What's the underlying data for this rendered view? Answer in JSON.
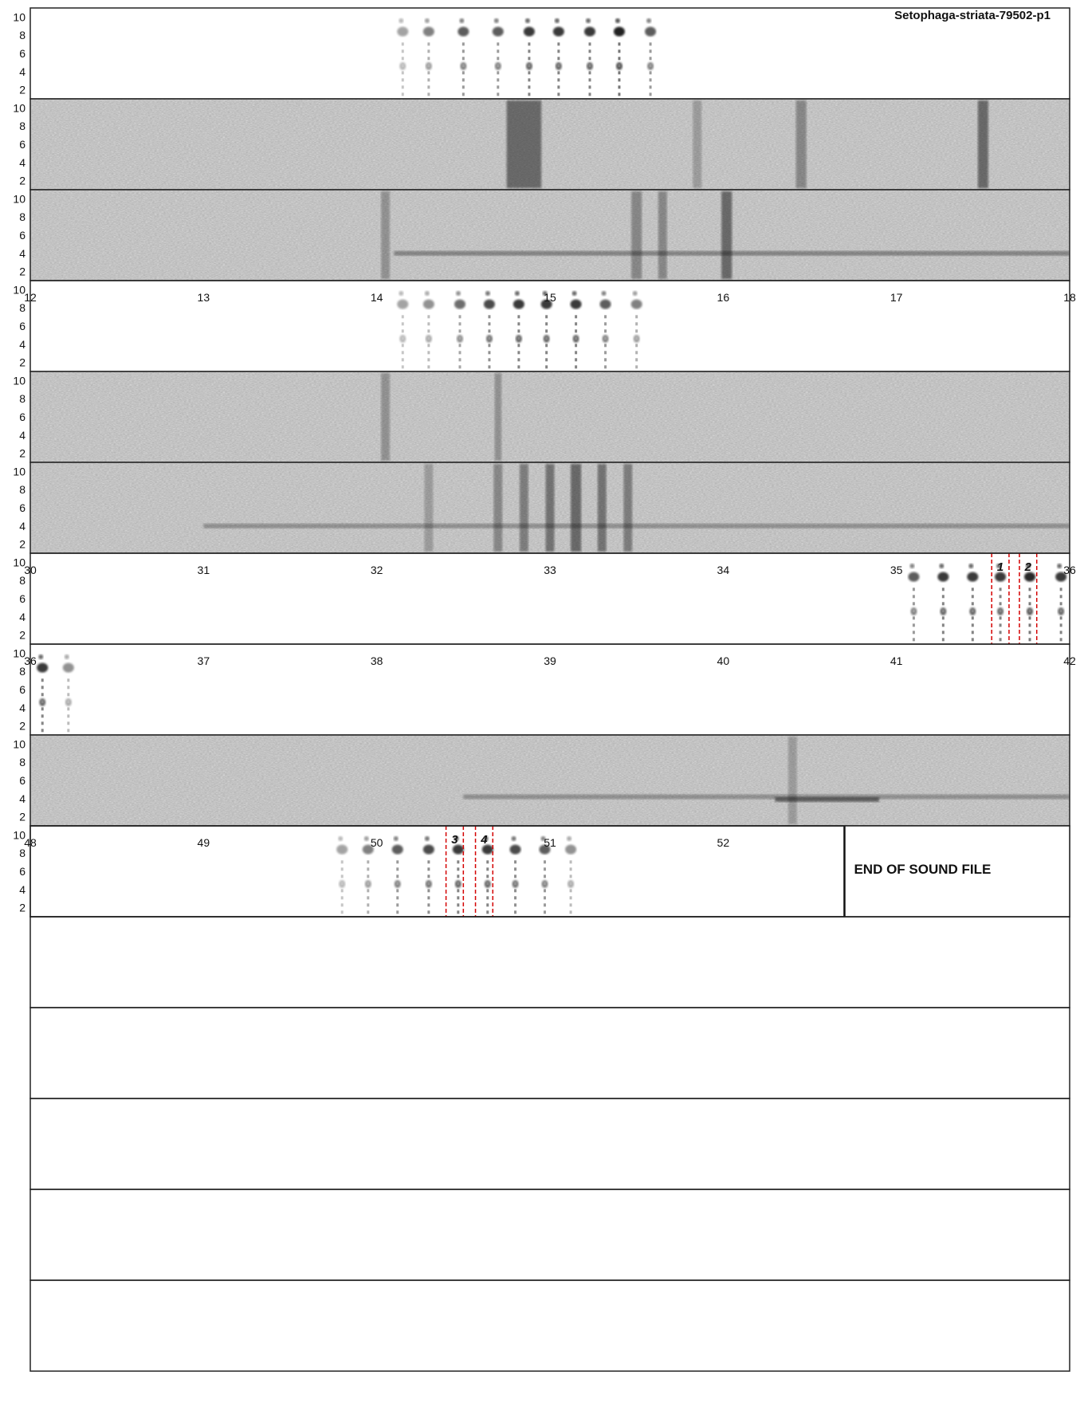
{
  "page_title": "Setophaga-striata-79502-p1",
  "end_label": "END OF SOUND FILE",
  "chart_data": {
    "type": "spectrogram",
    "title": "Setophaga-striata-79502-p1",
    "xlabel": "",
    "ylabel": "",
    "y_ticks": [
      2,
      4,
      6,
      8,
      10
    ],
    "seconds_per_row": 6,
    "rows": [
      {
        "x_start": 0,
        "x_end": 6,
        "x_ticks": [],
        "background": "clean",
        "calls": [
          {
            "t": 2.15,
            "strength": 0.2
          },
          {
            "t": 2.3,
            "strength": 0.4
          },
          {
            "t": 2.5,
            "strength": 0.6
          },
          {
            "t": 2.7,
            "strength": 0.6
          },
          {
            "t": 2.88,
            "strength": 0.8
          },
          {
            "t": 3.05,
            "strength": 0.8
          },
          {
            "t": 3.23,
            "strength": 0.8
          },
          {
            "t": 3.4,
            "strength": 0.95
          },
          {
            "t": 3.58,
            "strength": 0.6
          }
        ]
      },
      {
        "x_start": 6,
        "x_end": 12,
        "x_ticks": [],
        "background": "noise",
        "streaks": [
          {
            "t": 8.85,
            "strength": 0.9,
            "width": 0.2
          },
          {
            "t": 9.85,
            "strength": 0.4,
            "width": 0.05
          },
          {
            "t": 10.45,
            "strength": 0.6,
            "width": 0.06
          },
          {
            "t": 11.5,
            "strength": 0.9,
            "width": 0.06
          }
        ],
        "bands": []
      },
      {
        "x_start": 12,
        "x_end": 18,
        "x_ticks": [],
        "background": "noise",
        "streaks": [
          {
            "t": 14.05,
            "strength": 0.5,
            "width": 0.05
          },
          {
            "t": 15.5,
            "strength": 0.6,
            "width": 0.06
          },
          {
            "t": 15.65,
            "strength": 0.6,
            "width": 0.05
          },
          {
            "t": 16.02,
            "strength": 0.9,
            "width": 0.06
          }
        ],
        "bands": [
          {
            "t0": 14.1,
            "t1": 18.0,
            "f": 4.0,
            "strength": 0.55
          }
        ]
      },
      {
        "x_start": 12,
        "x_end": 18,
        "x_ticks": [
          12,
          13,
          14,
          15,
          16,
          17,
          18
        ],
        "background": "clean",
        "calls": [
          {
            "t": 14.15,
            "strength": 0.2
          },
          {
            "t": 14.3,
            "strength": 0.3
          },
          {
            "t": 14.48,
            "strength": 0.5
          },
          {
            "t": 14.65,
            "strength": 0.7
          },
          {
            "t": 14.82,
            "strength": 0.8
          },
          {
            "t": 14.98,
            "strength": 0.8
          },
          {
            "t": 15.15,
            "strength": 0.8
          },
          {
            "t": 15.32,
            "strength": 0.6
          },
          {
            "t": 15.5,
            "strength": 0.4
          }
        ]
      },
      {
        "x_start": 18,
        "x_end": 24,
        "x_ticks": [],
        "background": "noise",
        "streaks": [
          {
            "t": 20.05,
            "strength": 0.5,
            "width": 0.05
          },
          {
            "t": 20.7,
            "strength": 0.5,
            "width": 0.04
          }
        ],
        "bands": []
      },
      {
        "x_start": 24,
        "x_end": 30,
        "x_ticks": [],
        "background": "noise",
        "streaks": [
          {
            "t": 26.3,
            "strength": 0.4,
            "width": 0.05
          },
          {
            "t": 26.7,
            "strength": 0.6,
            "width": 0.05
          },
          {
            "t": 26.85,
            "strength": 0.7,
            "width": 0.05
          },
          {
            "t": 27.0,
            "strength": 0.8,
            "width": 0.05
          },
          {
            "t": 27.15,
            "strength": 0.9,
            "width": 0.06
          },
          {
            "t": 27.3,
            "strength": 0.8,
            "width": 0.05
          },
          {
            "t": 27.45,
            "strength": 0.7,
            "width": 0.05
          }
        ],
        "bands": [
          {
            "t0": 25.0,
            "t1": 30.0,
            "f": 4.0,
            "strength": 0.45
          }
        ]
      },
      {
        "x_start": 30,
        "x_end": 36,
        "x_ticks": [
          30,
          31,
          32,
          33,
          34,
          35,
          36
        ],
        "background": "clean",
        "calls": [
          {
            "t": 35.1,
            "strength": 0.6
          },
          {
            "t": 35.27,
            "strength": 0.8
          },
          {
            "t": 35.44,
            "strength": 0.8
          },
          {
            "t": 35.6,
            "strength": 0.8
          },
          {
            "t": 35.77,
            "strength": 0.9
          },
          {
            "t": 35.95,
            "strength": 0.8
          }
        ],
        "markers": [
          {
            "label": "1",
            "t0": 35.55,
            "t1": 35.65
          },
          {
            "label": "2",
            "t0": 35.71,
            "t1": 35.81
          }
        ]
      },
      {
        "x_start": 36,
        "x_end": 42,
        "x_ticks": [
          36,
          37,
          38,
          39,
          40,
          41,
          42
        ],
        "background": "clean",
        "calls": [
          {
            "t": 36.07,
            "strength": 0.8
          },
          {
            "t": 36.22,
            "strength": 0.3
          }
        ]
      },
      {
        "x_start": 42,
        "x_end": 48,
        "x_ticks": [],
        "background": "noise",
        "streaks": [
          {
            "t": 46.4,
            "strength": 0.4,
            "width": 0.05
          }
        ],
        "bands": [
          {
            "t0": 44.5,
            "t1": 48.0,
            "f": 4.2,
            "strength": 0.45
          },
          {
            "t0": 46.3,
            "t1": 46.9,
            "f": 3.9,
            "strength": 0.8
          }
        ]
      },
      {
        "x_start": 48,
        "x_end": 54,
        "x_ticks": [
          48,
          49,
          50,
          51,
          52
        ],
        "background": "clean",
        "calls": [
          {
            "t": 49.8,
            "strength": 0.2
          },
          {
            "t": 49.95,
            "strength": 0.4
          },
          {
            "t": 50.12,
            "strength": 0.6
          },
          {
            "t": 50.3,
            "strength": 0.7
          },
          {
            "t": 50.47,
            "strength": 0.8
          },
          {
            "t": 50.64,
            "strength": 0.8
          },
          {
            "t": 50.8,
            "strength": 0.7
          },
          {
            "t": 50.97,
            "strength": 0.6
          },
          {
            "t": 51.12,
            "strength": 0.3
          }
        ],
        "markers": [
          {
            "label": "3",
            "t0": 50.4,
            "t1": 50.5
          },
          {
            "label": "4",
            "t0": 50.57,
            "t1": 50.67
          }
        ],
        "end_of_file_at": 52.7
      },
      {
        "x_start": 54,
        "x_end": 60,
        "x_ticks": [],
        "background": "empty"
      },
      {
        "x_start": 60,
        "x_end": 66,
        "x_ticks": [],
        "background": "empty"
      },
      {
        "x_start": 66,
        "x_end": 72,
        "x_ticks": [],
        "background": "empty"
      },
      {
        "x_start": 72,
        "x_end": 78,
        "x_ticks": [],
        "background": "empty"
      },
      {
        "x_start": 78,
        "x_end": 84,
        "x_ticks": [],
        "background": "empty"
      }
    ]
  }
}
